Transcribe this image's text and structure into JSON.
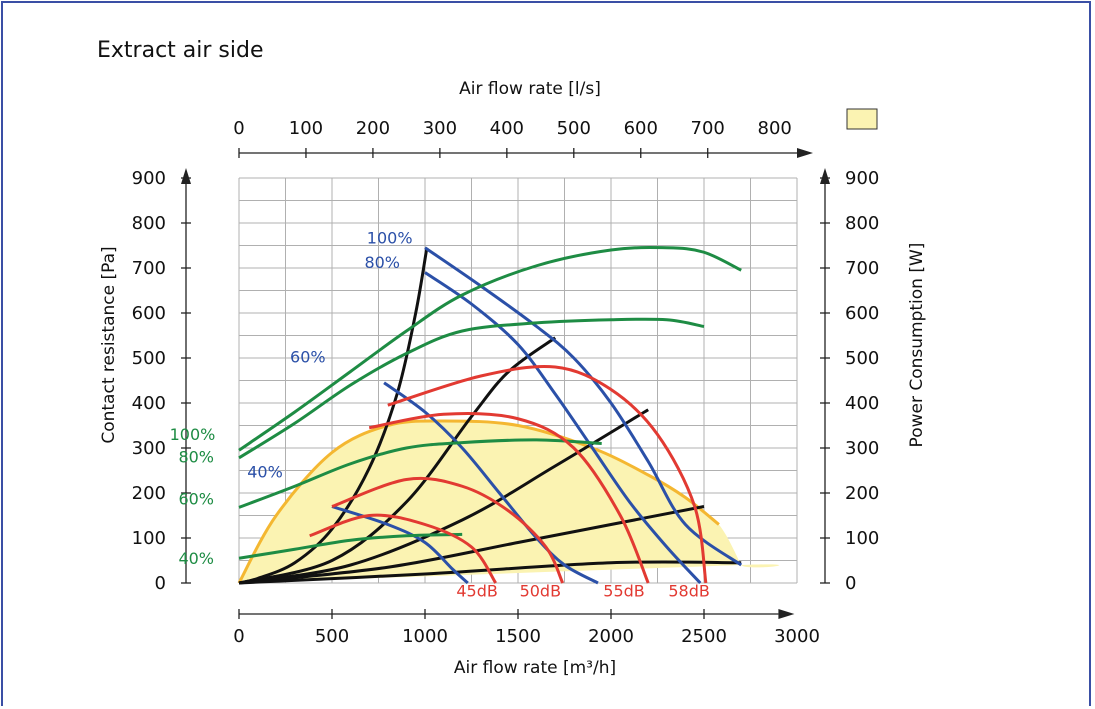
{
  "title": "Extract air side",
  "colors": {
    "frame": "#3a4fa5",
    "grid": "#b0b0b0",
    "blue": "#2b50a8",
    "green": "#1e8c44",
    "red": "#e23a32",
    "black": "#111111",
    "orange": "#f4b731",
    "fill": "#fbf3b2"
  },
  "chart_data": {
    "type": "line",
    "title": "Extract air side",
    "xlabel": "Air flow rate [m³/h]",
    "x2label": "Air flow rate [l/s]",
    "ylabel": "Contact resistance [Pa]",
    "y2label": "Power Consumption [W]",
    "xlim": [
      0,
      3000
    ],
    "ylim": [
      0,
      900
    ],
    "x_ticks": [
      "0",
      "500",
      "1000",
      "1500",
      "2000",
      "2500",
      "3000"
    ],
    "x2_ticks": [
      "0",
      "100",
      "200",
      "300",
      "400",
      "500",
      "600",
      "700",
      "800"
    ],
    "y_ticks": [
      "0",
      "100",
      "200",
      "300",
      "400",
      "500",
      "600",
      "700",
      "800",
      "900"
    ],
    "y2_ticks": [
      "0",
      "100",
      "200",
      "300",
      "400",
      "500",
      "600",
      "700",
      "800",
      "900"
    ],
    "grid": true,
    "pressure_curves": [
      {
        "label": "100%",
        "points": [
          [
            1000,
            745
          ],
          [
            1300,
            660
          ],
          [
            1600,
            570
          ],
          [
            1800,
            500
          ],
          [
            2000,
            400
          ],
          [
            2200,
            270
          ],
          [
            2400,
            130
          ],
          [
            2700,
            40
          ]
        ]
      },
      {
        "label": "80%",
        "points": [
          [
            1000,
            690
          ],
          [
            1250,
            620
          ],
          [
            1500,
            530
          ],
          [
            1700,
            420
          ],
          [
            1900,
            300
          ],
          [
            2100,
            180
          ],
          [
            2300,
            80
          ],
          [
            2480,
            0
          ]
        ]
      },
      {
        "label": "60%",
        "points": [
          [
            780,
            445
          ],
          [
            1000,
            380
          ],
          [
            1200,
            300
          ],
          [
            1400,
            200
          ],
          [
            1600,
            100
          ],
          [
            1750,
            40
          ],
          [
            1930,
            0
          ]
        ]
      },
      {
        "label": "40%",
        "points": [
          [
            500,
            170
          ],
          [
            800,
            130
          ],
          [
            1000,
            90
          ],
          [
            1150,
            30
          ],
          [
            1230,
            0
          ]
        ]
      }
    ],
    "pressure_labels": [
      {
        "text": "100%",
        "x": 810,
        "y": 755
      },
      {
        "text": "80%",
        "x": 770,
        "y": 700
      },
      {
        "text": "60%",
        "x": 370,
        "y": 490
      },
      {
        "text": "40%",
        "x": 140,
        "y": 235
      }
    ],
    "power_curves": [
      {
        "label": "100%",
        "points": [
          [
            0,
            295
          ],
          [
            300,
            380
          ],
          [
            600,
            470
          ],
          [
            900,
            560
          ],
          [
            1200,
            640
          ],
          [
            1600,
            705
          ],
          [
            2000,
            740
          ],
          [
            2300,
            745
          ],
          [
            2500,
            735
          ],
          [
            2700,
            695
          ]
        ]
      },
      {
        "label": "80%",
        "points": [
          [
            0,
            278
          ],
          [
            300,
            355
          ],
          [
            600,
            440
          ],
          [
            900,
            510
          ],
          [
            1200,
            560
          ],
          [
            1600,
            578
          ],
          [
            2000,
            585
          ],
          [
            2300,
            585
          ],
          [
            2500,
            570
          ]
        ]
      },
      {
        "label": "60%",
        "points": [
          [
            0,
            168
          ],
          [
            300,
            215
          ],
          [
            600,
            265
          ],
          [
            900,
            300
          ],
          [
            1200,
            312
          ],
          [
            1600,
            318
          ],
          [
            1950,
            310
          ]
        ]
      },
      {
        "label": "40%",
        "points": [
          [
            0,
            55
          ],
          [
            300,
            75
          ],
          [
            600,
            95
          ],
          [
            900,
            105
          ],
          [
            1200,
            108
          ]
        ]
      }
    ],
    "power_labels": [
      {
        "text": "100%",
        "x": -250,
        "y": 318
      },
      {
        "text": "80%",
        "x": -230,
        "y": 268
      },
      {
        "text": "60%",
        "x": -230,
        "y": 175
      },
      {
        "text": "40%",
        "x": -230,
        "y": 42
      }
    ],
    "sound_curves": [
      {
        "label": "45dB",
        "points": [
          [
            380,
            105
          ],
          [
            700,
            150
          ],
          [
            1000,
            130
          ],
          [
            1250,
            80
          ],
          [
            1380,
            0
          ]
        ]
      },
      {
        "label": "50dB",
        "points": [
          [
            500,
            170
          ],
          [
            900,
            230
          ],
          [
            1200,
            215
          ],
          [
            1450,
            160
          ],
          [
            1650,
            80
          ],
          [
            1740,
            0
          ]
        ]
      },
      {
        "label": "55dB",
        "points": [
          [
            700,
            345
          ],
          [
            1100,
            375
          ],
          [
            1500,
            365
          ],
          [
            1800,
            300
          ],
          [
            2050,
            150
          ],
          [
            2200,
            0
          ]
        ]
      },
      {
        "label": "58dB",
        "points": [
          [
            800,
            395
          ],
          [
            1300,
            460
          ],
          [
            1700,
            480
          ],
          [
            2000,
            430
          ],
          [
            2250,
            330
          ],
          [
            2450,
            170
          ],
          [
            2510,
            0
          ]
        ]
      }
    ],
    "sound_labels": [
      {
        "text": "45dB",
        "x": 1280,
        "y": -30
      },
      {
        "text": "50dB",
        "x": 1620,
        "y": -30
      },
      {
        "text": "55dB",
        "x": 2070,
        "y": -30
      },
      {
        "text": "58dB",
        "x": 2420,
        "y": -30
      }
    ],
    "system_lines": [
      {
        "points": [
          [
            0,
            0
          ],
          [
            100,
            10
          ],
          [
            300,
            45
          ],
          [
            500,
            120
          ],
          [
            700,
            255
          ],
          [
            850,
            420
          ],
          [
            950,
            600
          ],
          [
            1010,
            745
          ]
        ]
      },
      {
        "points": [
          [
            0,
            0
          ],
          [
            500,
            50
          ],
          [
            900,
            180
          ],
          [
            1250,
            370
          ],
          [
            1450,
            470
          ],
          [
            1700,
            545
          ]
        ]
      },
      {
        "points": [
          [
            0,
            0
          ],
          [
            600,
            40
          ],
          [
            1200,
            140
          ],
          [
            1700,
            260
          ],
          [
            2200,
            385
          ]
        ]
      },
      {
        "points": [
          [
            0,
            0
          ],
          [
            800,
            35
          ],
          [
            1500,
            90
          ],
          [
            2000,
            130
          ],
          [
            2500,
            170
          ]
        ]
      },
      {
        "points": [
          [
            0,
            0
          ],
          [
            1000,
            20
          ],
          [
            2000,
            45
          ],
          [
            2700,
            45
          ]
        ]
      }
    ],
    "operating_envelope": [
      [
        0,
        0
      ],
      [
        200,
        150
      ],
      [
        500,
        290
      ],
      [
        800,
        350
      ],
      [
        1100,
        360
      ],
      [
        1500,
        350
      ],
      [
        1900,
        300
      ],
      [
        2200,
        240
      ],
      [
        2400,
        190
      ],
      [
        2580,
        130
      ],
      [
        2700,
        40
      ],
      [
        2700,
        40
      ],
      [
        0,
        0
      ]
    ],
    "legend_box": true
  }
}
